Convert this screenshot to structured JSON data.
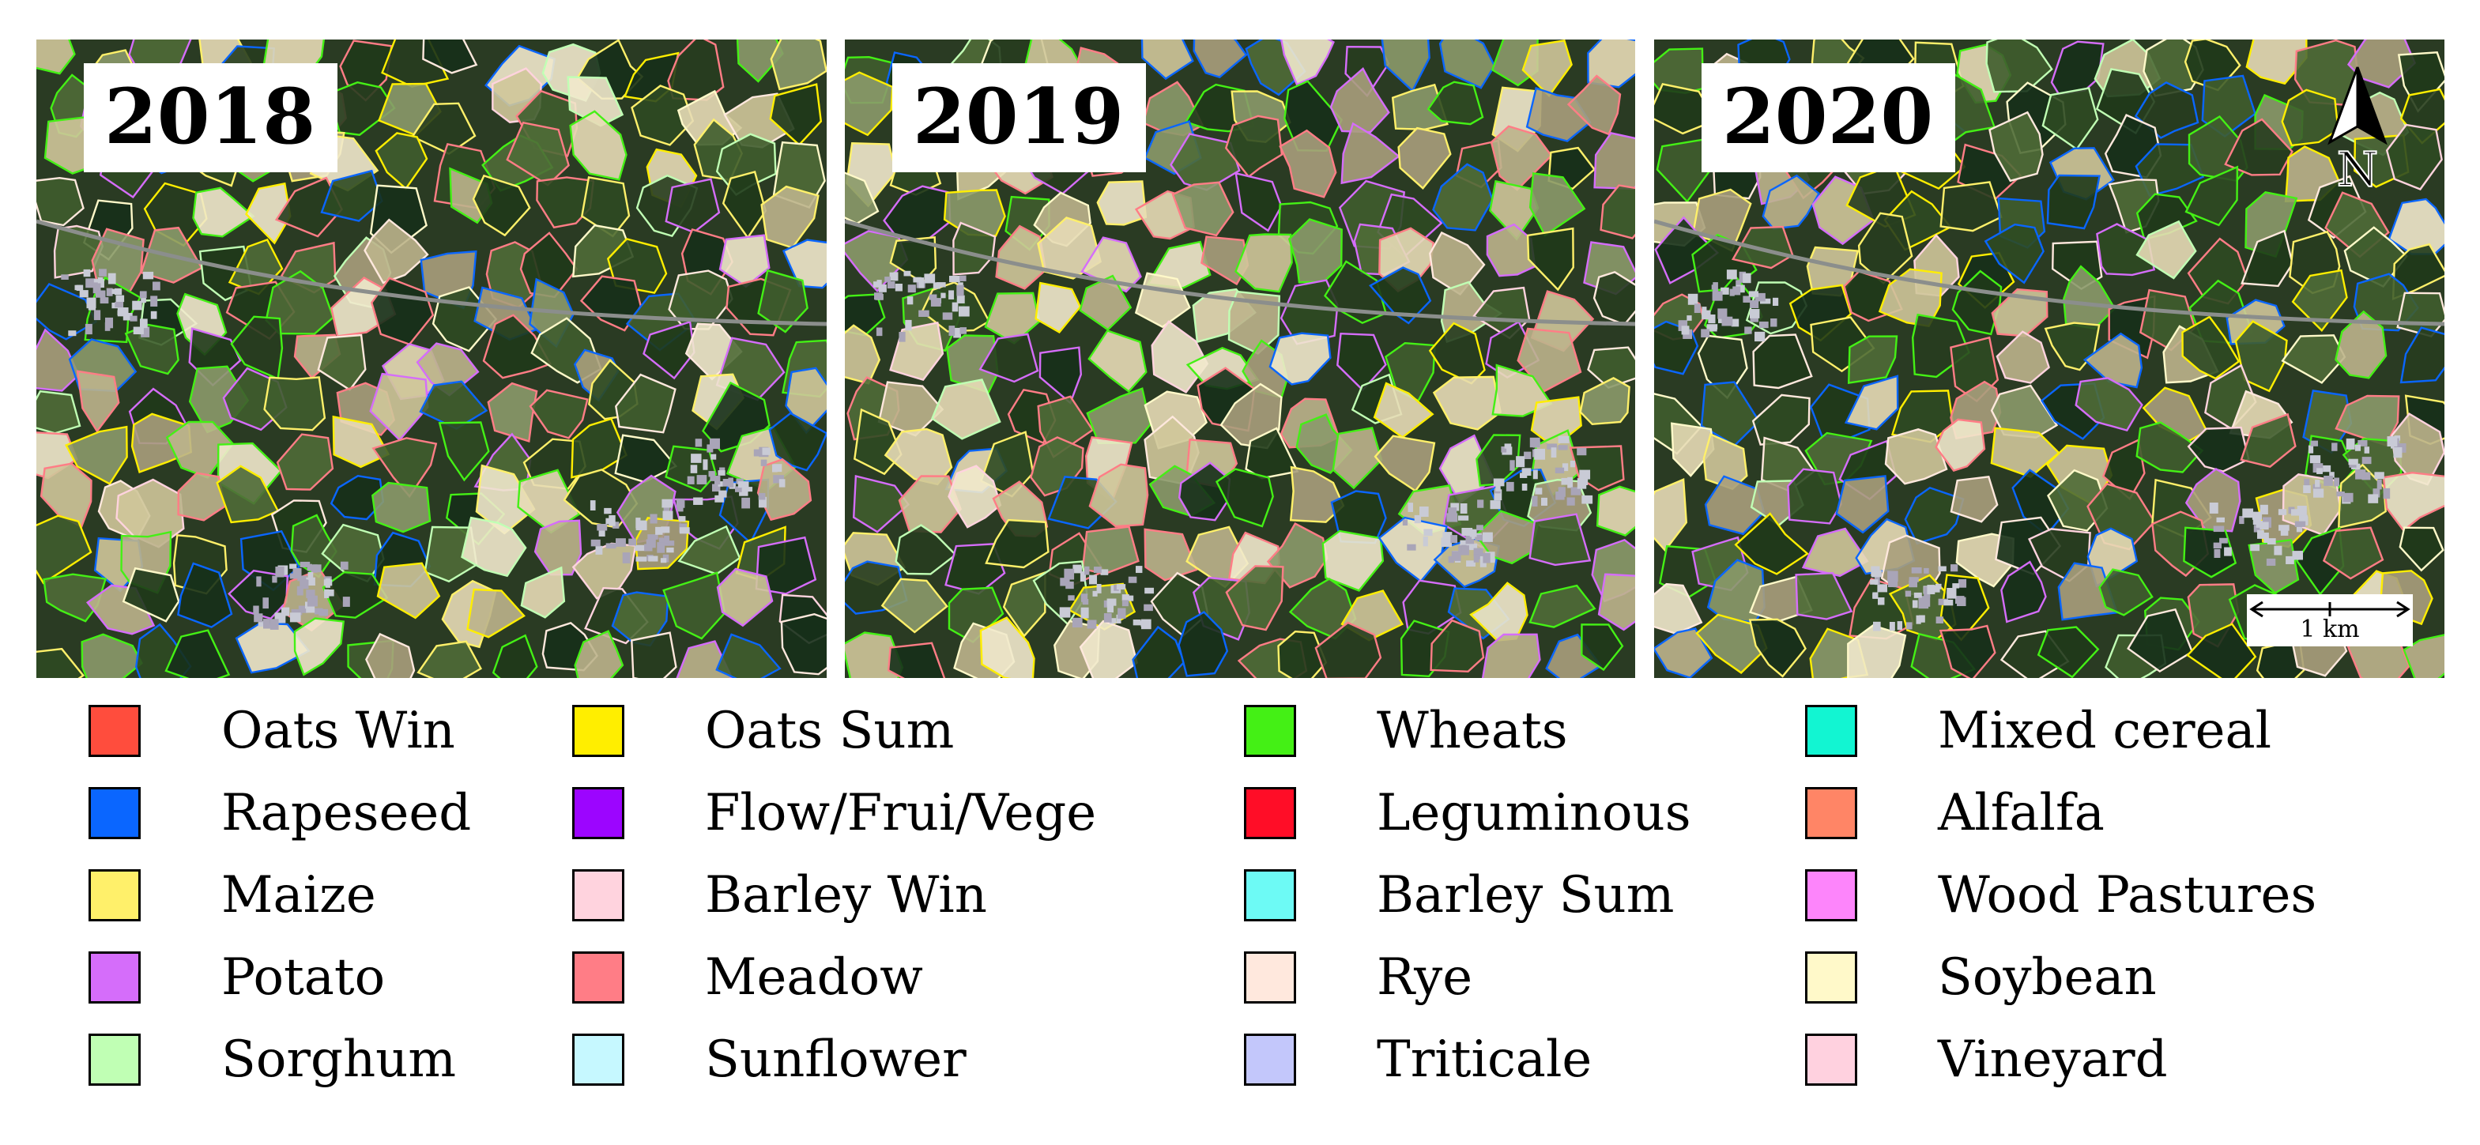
{
  "panels": [
    {
      "year": "2018",
      "north_arrow": false,
      "scale_bar": false
    },
    {
      "year": "2019",
      "north_arrow": false,
      "scale_bar": false
    },
    {
      "year": "2020",
      "north_arrow": true,
      "scale_bar": true
    }
  ],
  "north_arrow": {
    "label": "N"
  },
  "scale_bar": {
    "label": "1 km"
  },
  "legend": [
    {
      "label": "Oats Win",
      "color": "#ff4d3d"
    },
    {
      "label": "Rapeseed",
      "color": "#0a66ff"
    },
    {
      "label": "Maize",
      "color": "#fff06a"
    },
    {
      "label": "Potato",
      "color": "#d56dfa"
    },
    {
      "label": "Sorghum",
      "color": "#c0ffb4"
    },
    {
      "label": "Oats Sum",
      "color": "#ffee00"
    },
    {
      "label": "Flow/Frui/Vege",
      "color": "#9c05ff"
    },
    {
      "label": "Barley Win",
      "color": "#ffd3de"
    },
    {
      "label": "Meadow",
      "color": "#ff7d86"
    },
    {
      "label": "Sunflower",
      "color": "#c6f8ff"
    },
    {
      "label": "Wheats",
      "color": "#44f015"
    },
    {
      "label": "Leguminous",
      "color": "#ff0d27"
    },
    {
      "label": "Barley Sum",
      "color": "#6dfaf5"
    },
    {
      "label": "Rye",
      "color": "#ffe8dd"
    },
    {
      "label": "Triticale",
      "color": "#c3c7fb"
    },
    {
      "label": "Mixed cereal",
      "color": "#12f5d2"
    },
    {
      "label": "Alfalfa",
      "color": "#ff8566"
    },
    {
      "label": "Wood Pastures",
      "color": "#fd85fb"
    },
    {
      "label": "Soybean",
      "color": "#fff9c9"
    },
    {
      "label": "Vineyard",
      "color": "#ffd1df"
    }
  ]
}
